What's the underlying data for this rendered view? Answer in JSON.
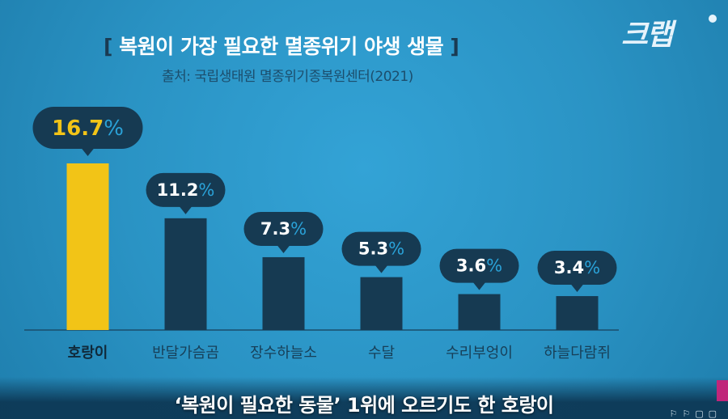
{
  "title": {
    "bracket_open": "[",
    "text": "복원이 가장 필요한 멸종위기 야생 생물",
    "bracket_close": "]"
  },
  "source": "출처: 국립생태원 멸종위기종복원센터(2021)",
  "logo": "크랩",
  "subtitle": "‘복원이 필요한 동물’ 1위에 오르기도 한 호랑이",
  "colors": {
    "highlight_bar": "#f2c417",
    "bar": "#163a52",
    "bubble": "#163a52",
    "highlight_label": "#f2c417",
    "label_number": "#ffffff",
    "label_percent": "#2aa2d8"
  },
  "chart_data": {
    "type": "bar",
    "categories": [
      "호랑이",
      "반달가슴곰",
      "장수하늘소",
      "수달",
      "수리부엉이",
      "하늘다람쥐"
    ],
    "values": [
      16.7,
      11.2,
      7.3,
      5.3,
      3.6,
      3.4
    ],
    "value_labels": [
      "16.7",
      "11.2",
      "7.3",
      "5.3",
      "3.6",
      "3.4"
    ],
    "unit": "%",
    "highlight_index": 0,
    "ylim": [
      0,
      16.7
    ]
  }
}
